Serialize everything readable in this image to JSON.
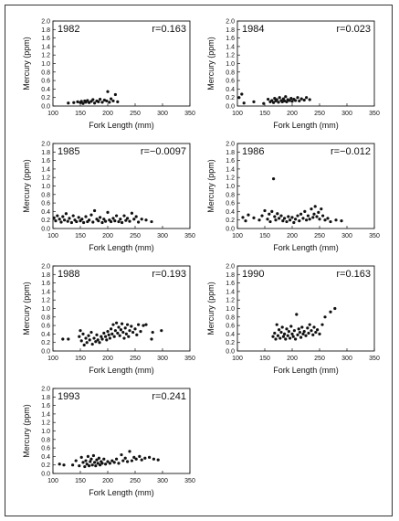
{
  "chart_data": [
    {
      "type": "scatter",
      "year": "1982",
      "r_label": "r=0.163",
      "xlabel": "Fork Length (mm)",
      "ylabel": "Mercury (ppm)",
      "xlim": [
        100,
        350
      ],
      "ylim": [
        0,
        2
      ],
      "xticks": [
        "100",
        "150",
        "200",
        "250",
        "300",
        "350"
      ],
      "yticks": [
        "0.0",
        "0.2",
        "0.4",
        "0.6",
        "0.8",
        "1.0",
        "1.2",
        "1.4",
        "1.6",
        "1.8",
        "2.0"
      ],
      "points": [
        [
          128,
          0.07
        ],
        [
          138,
          0.08
        ],
        [
          145,
          0.1
        ],
        [
          150,
          0.08
        ],
        [
          152,
          0.11
        ],
        [
          155,
          0.06
        ],
        [
          158,
          0.12
        ],
        [
          160,
          0.09
        ],
        [
          163,
          0.13
        ],
        [
          166,
          0.08
        ],
        [
          170,
          0.11
        ],
        [
          173,
          0.15
        ],
        [
          176,
          0.07
        ],
        [
          180,
          0.12
        ],
        [
          183,
          0.1
        ],
        [
          186,
          0.16
        ],
        [
          190,
          0.09
        ],
        [
          194,
          0.14
        ],
        [
          198,
          0.12
        ],
        [
          200,
          0.34
        ],
        [
          203,
          0.09
        ],
        [
          206,
          0.17
        ],
        [
          210,
          0.12
        ],
        [
          214,
          0.27
        ],
        [
          218,
          0.1
        ]
      ]
    },
    {
      "type": "scatter",
      "year": "1984",
      "r_label": "r=0.023",
      "xlabel": "Fork Length (mm)",
      "ylabel": "Mercury (ppm)",
      "xlim": [
        100,
        350
      ],
      "ylim": [
        0,
        2
      ],
      "xticks": [
        "100",
        "150",
        "200",
        "250",
        "300",
        "350"
      ],
      "yticks": [
        "0.0",
        "0.2",
        "0.4",
        "0.6",
        "0.8",
        "1.0",
        "1.2",
        "1.4",
        "1.6",
        "1.8",
        "2.0"
      ],
      "points": [
        [
          103,
          0.2
        ],
        [
          108,
          0.28
        ],
        [
          112,
          0.07
        ],
        [
          130,
          0.1
        ],
        [
          148,
          0.06
        ],
        [
          156,
          0.16
        ],
        [
          160,
          0.1
        ],
        [
          163,
          0.13
        ],
        [
          166,
          0.08
        ],
        [
          168,
          0.18
        ],
        [
          170,
          0.12
        ],
        [
          172,
          0.15
        ],
        [
          175,
          0.09
        ],
        [
          177,
          0.2
        ],
        [
          180,
          0.13
        ],
        [
          182,
          0.1
        ],
        [
          184,
          0.17
        ],
        [
          186,
          0.12
        ],
        [
          188,
          0.22
        ],
        [
          190,
          0.1
        ],
        [
          192,
          0.15
        ],
        [
          195,
          0.13
        ],
        [
          198,
          0.18
        ],
        [
          200,
          0.11
        ],
        [
          203,
          0.16
        ],
        [
          206,
          0.13
        ],
        [
          210,
          0.2
        ],
        [
          213,
          0.12
        ],
        [
          217,
          0.17
        ],
        [
          222,
          0.14
        ],
        [
          226,
          0.2
        ],
        [
          232,
          0.15
        ]
      ]
    },
    {
      "type": "scatter",
      "year": "1985",
      "r_label": "r=−0.0097",
      "xlabel": "Fork Length (mm)",
      "ylabel": "Mercury (ppm)",
      "xlim": [
        100,
        350
      ],
      "ylim": [
        0,
        2
      ],
      "xticks": [
        "100",
        "150",
        "200",
        "250",
        "300",
        "350"
      ],
      "yticks": [
        "0.0",
        "0.2",
        "0.4",
        "0.6",
        "0.8",
        "1.0",
        "1.2",
        "1.4",
        "1.6",
        "1.8",
        "2.0"
      ],
      "points": [
        [
          102,
          0.25
        ],
        [
          105,
          0.18
        ],
        [
          108,
          0.3
        ],
        [
          112,
          0.22
        ],
        [
          115,
          0.15
        ],
        [
          118,
          0.28
        ],
        [
          121,
          0.2
        ],
        [
          124,
          0.35
        ],
        [
          127,
          0.17
        ],
        [
          130,
          0.24
        ],
        [
          134,
          0.14
        ],
        [
          137,
          0.3
        ],
        [
          140,
          0.2
        ],
        [
          143,
          0.16
        ],
        [
          147,
          0.26
        ],
        [
          150,
          0.18
        ],
        [
          153,
          0.22
        ],
        [
          156,
          0.14
        ],
        [
          160,
          0.28
        ],
        [
          163,
          0.16
        ],
        [
          166,
          0.2
        ],
        [
          170,
          0.32
        ],
        [
          173,
          0.15
        ],
        [
          176,
          0.42
        ],
        [
          180,
          0.22
        ],
        [
          183,
          0.18
        ],
        [
          186,
          0.26
        ],
        [
          190,
          0.14
        ],
        [
          193,
          0.22
        ],
        [
          196,
          0.17
        ],
        [
          200,
          0.38
        ],
        [
          203,
          0.2
        ],
        [
          206,
          0.16
        ],
        [
          210,
          0.24
        ],
        [
          213,
          0.18
        ],
        [
          216,
          0.3
        ],
        [
          220,
          0.16
        ],
        [
          223,
          0.22
        ],
        [
          226,
          0.14
        ],
        [
          230,
          0.3
        ],
        [
          233,
          0.19
        ],
        [
          236,
          0.24
        ],
        [
          240,
          0.17
        ],
        [
          244,
          0.36
        ],
        [
          248,
          0.22
        ],
        [
          252,
          0.28
        ],
        [
          256,
          0.15
        ],
        [
          262,
          0.22
        ],
        [
          270,
          0.2
        ],
        [
          280,
          0.16
        ]
      ]
    },
    {
      "type": "scatter",
      "year": "1986",
      "r_label": "r=−0.012",
      "xlabel": "Fork Length (mm)",
      "ylabel": "Mercury (ppm)",
      "xlim": [
        100,
        350
      ],
      "ylim": [
        0,
        2
      ],
      "xticks": [
        "100",
        "150",
        "200",
        "250",
        "300",
        "350"
      ],
      "yticks": [
        "0.0",
        "0.2",
        "0.4",
        "0.6",
        "0.8",
        "1.0",
        "1.2",
        "1.4",
        "1.6",
        "1.8",
        "2.0"
      ],
      "points": [
        [
          110,
          0.26
        ],
        [
          115,
          0.18
        ],
        [
          120,
          0.32
        ],
        [
          130,
          0.25
        ],
        [
          140,
          0.2
        ],
        [
          145,
          0.3
        ],
        [
          150,
          0.42
        ],
        [
          155,
          0.22
        ],
        [
          158,
          0.34
        ],
        [
          160,
          0.16
        ],
        [
          163,
          0.4
        ],
        [
          166,
          1.17
        ],
        [
          168,
          0.28
        ],
        [
          170,
          0.2
        ],
        [
          173,
          0.35
        ],
        [
          176,
          0.24
        ],
        [
          180,
          0.3
        ],
        [
          183,
          0.18
        ],
        [
          186,
          0.24
        ],
        [
          190,
          0.16
        ],
        [
          193,
          0.28
        ],
        [
          196,
          0.2
        ],
        [
          200,
          0.26
        ],
        [
          203,
          0.14
        ],
        [
          206,
          0.22
        ],
        [
          210,
          0.3
        ],
        [
          213,
          0.18
        ],
        [
          216,
          0.34
        ],
        [
          220,
          0.24
        ],
        [
          223,
          0.4
        ],
        [
          226,
          0.2
        ],
        [
          229,
          0.3
        ],
        [
          232,
          0.22
        ],
        [
          235,
          0.46
        ],
        [
          238,
          0.26
        ],
        [
          240,
          0.34
        ],
        [
          242,
          0.52
        ],
        [
          245,
          0.28
        ],
        [
          248,
          0.38
        ],
        [
          250,
          0.22
        ],
        [
          253,
          0.46
        ],
        [
          256,
          0.3
        ],
        [
          260,
          0.2
        ],
        [
          265,
          0.24
        ],
        [
          270,
          0.16
        ],
        [
          280,
          0.2
        ],
        [
          290,
          0.18
        ]
      ]
    },
    {
      "type": "scatter",
      "year": "1988",
      "r_label": "r=0.193",
      "xlabel": "Fork Length (mm)",
      "ylabel": "Mercury (ppm)",
      "xlim": [
        100,
        350
      ],
      "ylim": [
        0,
        2
      ],
      "xticks": [
        "100",
        "150",
        "200",
        "250",
        "300",
        "350"
      ],
      "yticks": [
        "0.0",
        "0.2",
        "0.4",
        "0.6",
        "0.8",
        "1.0",
        "1.2",
        "1.4",
        "1.6",
        "1.8",
        "2.0"
      ],
      "points": [
        [
          118,
          0.28
        ],
        [
          128,
          0.28
        ],
        [
          148,
          0.34
        ],
        [
          150,
          0.48
        ],
        [
          152,
          0.24
        ],
        [
          155,
          0.4
        ],
        [
          157,
          0.14
        ],
        [
          160,
          0.3
        ],
        [
          162,
          0.2
        ],
        [
          165,
          0.36
        ],
        [
          167,
          0.26
        ],
        [
          170,
          0.44
        ],
        [
          172,
          0.16
        ],
        [
          175,
          0.3
        ],
        [
          178,
          0.22
        ],
        [
          180,
          0.38
        ],
        [
          182,
          0.26
        ],
        [
          185,
          0.2
        ],
        [
          188,
          0.34
        ],
        [
          190,
          0.28
        ],
        [
          193,
          0.42
        ],
        [
          196,
          0.34
        ],
        [
          198,
          0.26
        ],
        [
          200,
          0.46
        ],
        [
          202,
          0.38
        ],
        [
          204,
          0.3
        ],
        [
          206,
          0.52
        ],
        [
          208,
          0.4
        ],
        [
          210,
          0.62
        ],
        [
          212,
          0.34
        ],
        [
          214,
          0.48
        ],
        [
          216,
          0.66
        ],
        [
          218,
          0.42
        ],
        [
          220,
          0.56
        ],
        [
          222,
          0.36
        ],
        [
          224,
          0.5
        ],
        [
          226,
          0.64
        ],
        [
          228,
          0.44
        ],
        [
          230,
          0.3
        ],
        [
          232,
          0.54
        ],
        [
          234,
          0.4
        ],
        [
          236,
          0.62
        ],
        [
          238,
          0.34
        ],
        [
          240,
          0.48
        ],
        [
          243,
          0.58
        ],
        [
          246,
          0.44
        ],
        [
          250,
          0.52
        ],
        [
          253,
          0.38
        ],
        [
          256,
          0.62
        ],
        [
          260,
          0.46
        ],
        [
          265,
          0.6
        ],
        [
          270,
          0.62
        ],
        [
          280,
          0.28
        ],
        [
          282,
          0.44
        ],
        [
          298,
          0.48
        ]
      ]
    },
    {
      "type": "scatter",
      "year": "1990",
      "r_label": "r=0.163",
      "xlabel": "Fork Length (mm)",
      "ylabel": "Mercury (ppm)",
      "xlim": [
        100,
        350
      ],
      "ylim": [
        0,
        2
      ],
      "xticks": [
        "100",
        "150",
        "200",
        "250",
        "300",
        "350"
      ],
      "yticks": [
        "0.0",
        "0.2",
        "0.4",
        "0.6",
        "0.8",
        "1.0",
        "1.2",
        "1.4",
        "1.6",
        "1.8",
        "2.0"
      ],
      "points": [
        [
          165,
          0.34
        ],
        [
          168,
          0.42
        ],
        [
          170,
          0.28
        ],
        [
          172,
          0.62
        ],
        [
          174,
          0.36
        ],
        [
          176,
          0.5
        ],
        [
          178,
          0.3
        ],
        [
          180,
          0.44
        ],
        [
          182,
          0.56
        ],
        [
          184,
          0.34
        ],
        [
          186,
          0.4
        ],
        [
          188,
          0.28
        ],
        [
          190,
          0.52
        ],
        [
          192,
          0.36
        ],
        [
          194,
          0.46
        ],
        [
          196,
          0.3
        ],
        [
          198,
          0.58
        ],
        [
          200,
          0.4
        ],
        [
          202,
          0.34
        ],
        [
          204,
          0.48
        ],
        [
          206,
          0.28
        ],
        [
          208,
          0.86
        ],
        [
          210,
          0.38
        ],
        [
          212,
          0.52
        ],
        [
          214,
          0.44
        ],
        [
          216,
          0.32
        ],
        [
          218,
          0.56
        ],
        [
          220,
          0.4
        ],
        [
          222,
          0.46
        ],
        [
          225,
          0.36
        ],
        [
          228,
          0.54
        ],
        [
          230,
          0.42
        ],
        [
          232,
          0.62
        ],
        [
          235,
          0.48
        ],
        [
          238,
          0.38
        ],
        [
          240,
          0.56
        ],
        [
          243,
          0.44
        ],
        [
          246,
          0.5
        ],
        [
          250,
          0.4
        ],
        [
          255,
          0.62
        ],
        [
          260,
          0.8
        ],
        [
          270,
          0.92
        ],
        [
          278,
          1.0
        ]
      ]
    },
    {
      "type": "scatter",
      "year": "1993",
      "r_label": "r=0.241",
      "xlabel": "Fork Length (mm)",
      "ylabel": "Mercury (ppm)",
      "xlim": [
        100,
        350
      ],
      "ylim": [
        0,
        2
      ],
      "xticks": [
        "100",
        "150",
        "200",
        "250",
        "300",
        "350"
      ],
      "yticks": [
        "0.0",
        "0.2",
        "0.4",
        "0.6",
        "0.8",
        "1.0",
        "1.2",
        "1.4",
        "1.6",
        "1.8",
        "2.0"
      ],
      "points": [
        [
          112,
          0.22
        ],
        [
          120,
          0.2
        ],
        [
          136,
          0.2
        ],
        [
          142,
          0.3
        ],
        [
          148,
          0.18
        ],
        [
          152,
          0.38
        ],
        [
          155,
          0.26
        ],
        [
          158,
          0.16
        ],
        [
          160,
          0.3
        ],
        [
          162,
          0.22
        ],
        [
          164,
          0.4
        ],
        [
          166,
          0.18
        ],
        [
          168,
          0.28
        ],
        [
          170,
          0.34
        ],
        [
          172,
          0.2
        ],
        [
          174,
          0.42
        ],
        [
          176,
          0.26
        ],
        [
          178,
          0.18
        ],
        [
          180,
          0.32
        ],
        [
          182,
          0.24
        ],
        [
          184,
          0.36
        ],
        [
          186,
          0.2
        ],
        [
          188,
          0.28
        ],
        [
          190,
          0.24
        ],
        [
          193,
          0.34
        ],
        [
          196,
          0.22
        ],
        [
          200,
          0.28
        ],
        [
          204,
          0.24
        ],
        [
          208,
          0.3
        ],
        [
          212,
          0.26
        ],
        [
          216,
          0.34
        ],
        [
          220,
          0.24
        ],
        [
          225,
          0.44
        ],
        [
          228,
          0.3
        ],
        [
          232,
          0.36
        ],
        [
          236,
          0.28
        ],
        [
          240,
          0.52
        ],
        [
          244,
          0.3
        ],
        [
          248,
          0.38
        ],
        [
          252,
          0.34
        ],
        [
          258,
          0.4
        ],
        [
          262,
          0.32
        ],
        [
          268,
          0.36
        ],
        [
          276,
          0.38
        ],
        [
          284,
          0.34
        ],
        [
          292,
          0.32
        ]
      ]
    }
  ]
}
